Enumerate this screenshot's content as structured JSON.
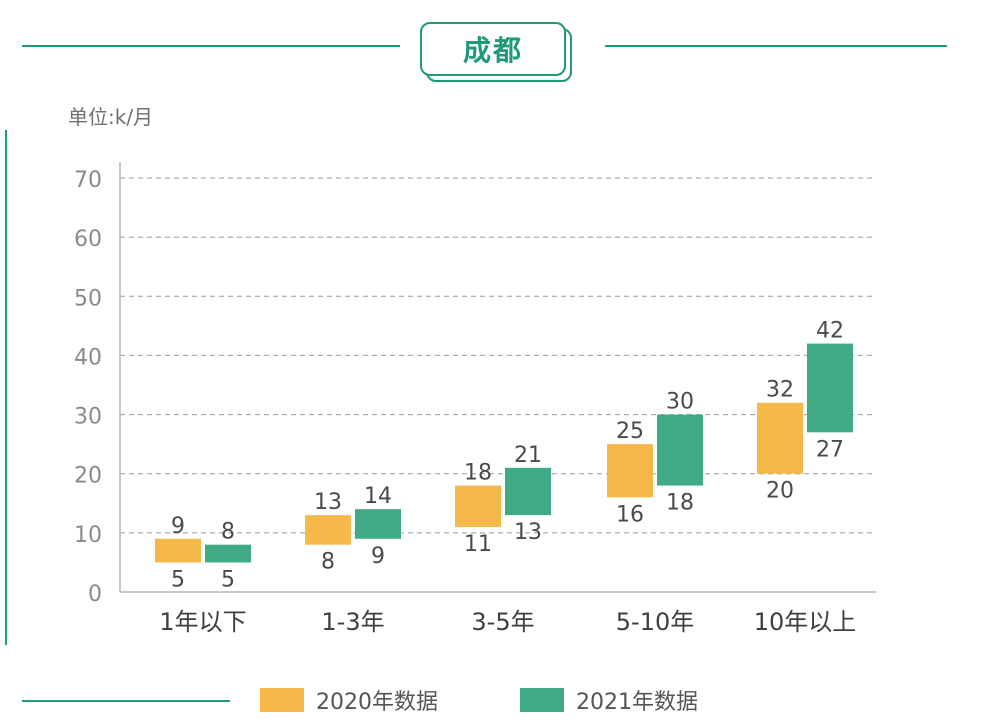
{
  "title": "成都",
  "unit_label": "单位:k/月",
  "colors": {
    "accent": "#1e9a78",
    "s2020": "#f5b94a",
    "s2021": "#3faa83"
  },
  "chart_data": {
    "type": "bar",
    "subtype": "floating-range",
    "categories": [
      "1年以下",
      "1-3年",
      "3-5年",
      "5-10年",
      "10年以上"
    ],
    "series": [
      {
        "name": "2020年数据",
        "low": [
          5,
          8,
          11,
          16,
          20
        ],
        "high": [
          9,
          13,
          18,
          25,
          32
        ]
      },
      {
        "name": "2021年数据",
        "low": [
          5,
          9,
          13,
          18,
          27
        ],
        "high": [
          8,
          14,
          21,
          30,
          42
        ]
      }
    ],
    "y_ticks": [
      "0",
      "10",
      "20",
      "30",
      "40",
      "50",
      "60",
      "70"
    ],
    "ylim": [
      0,
      70
    ],
    "grid": true,
    "legend_position": "bottom"
  }
}
